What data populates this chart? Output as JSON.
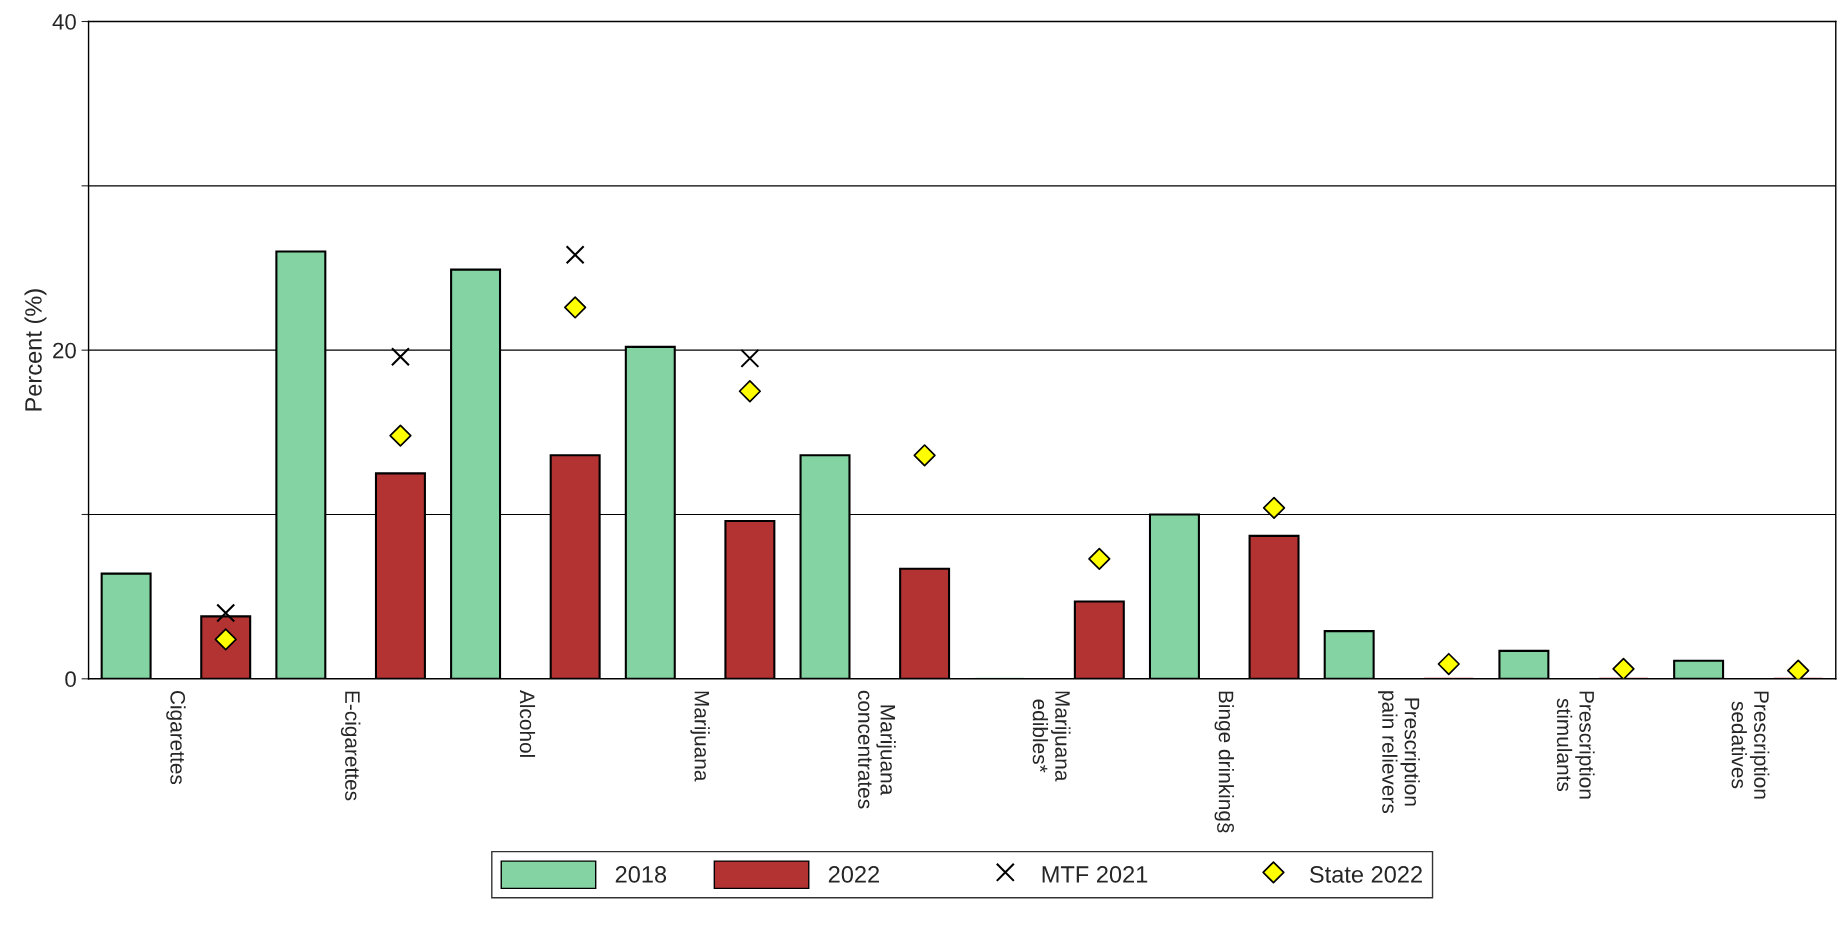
{
  "chart_data": {
    "type": "bar",
    "ylabel": "Percent (%)",
    "categories": [
      "Cigarettes",
      "E-cigarettes",
      "Alcohol",
      "Marijuana",
      "Marijuana\nconcentrates",
      "Marijuana\nedibles*",
      "Binge drinking§",
      "Prescription\npain relievers",
      "Prescription\nstimulants",
      "Prescription\nsedatives"
    ],
    "series": [
      {
        "name": "2018",
        "color": "#83d3a3",
        "values": [
          6.4,
          26.0,
          24.9,
          20.2,
          13.6,
          0,
          10.0,
          2.9,
          1.7,
          1.1
        ]
      },
      {
        "name": "2022",
        "color": "#b33333",
        "values": [
          3.8,
          12.5,
          13.6,
          9.6,
          6.7,
          4.7,
          8.7,
          0,
          0,
          0
        ]
      },
      {
        "name": "MTF 2021",
        "type": "scatter",
        "marker": "cross",
        "color": "#000000",
        "x": [
          "Cigarettes",
          "E-cigarettes",
          "Alcohol",
          "Marijuana",
          "Marijuana\nconcentrates",
          "Marijuana\nedibles*",
          "Binge drinking§",
          "Prescription\npain relievers",
          "Prescription\nstimulants",
          "Prescription\nsedatives"
        ],
        "values": [
          4.0,
          19.6,
          25.8,
          19.5,
          null,
          null,
          null,
          null,
          null,
          null
        ]
      },
      {
        "name": "State 2022",
        "type": "scatter",
        "marker": "diamond",
        "color": "#ffff00",
        "x": [
          "Cigarettes",
          "E-cigarettes",
          "Alcohol",
          "Marijuana",
          "Marijuana\nconcentrates",
          "Marijuana\nedibles*",
          "Binge drinking§",
          "Prescription\npain relievers",
          "Prescription\nstimulants",
          "Prescription\nsedatives"
        ],
        "values": [
          2.4,
          14.8,
          22.6,
          17.5,
          13.6,
          7.3,
          10.4,
          0.9,
          0.6,
          0.5
        ]
      }
    ],
    "ylim": [
      0,
      40
    ],
    "yticks": [
      0,
      {
        "value": 10,
        "label": null
      },
      20,
      {
        "value": 30,
        "label": null
      },
      40
    ],
    "grid": "y",
    "legend": "bottom"
  }
}
